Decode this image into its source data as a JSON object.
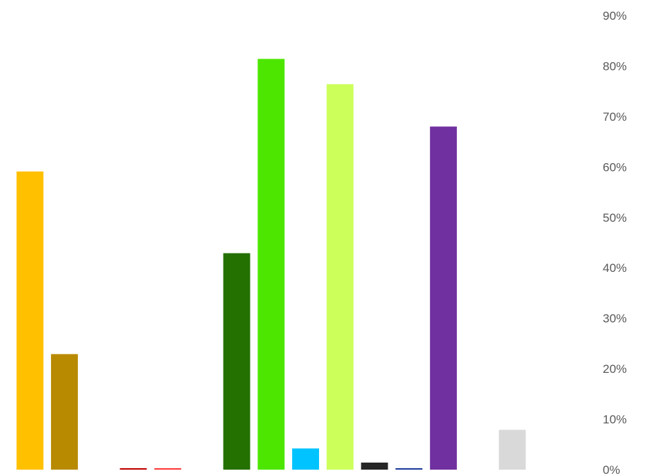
{
  "chart_data": {
    "type": "bar",
    "title": "",
    "xlabel": "",
    "ylabel": "",
    "ylim": [
      0,
      90
    ],
    "y_axis_position": "right",
    "y_ticks": [
      0,
      10,
      20,
      30,
      40,
      50,
      60,
      70,
      80,
      90
    ],
    "y_tick_labels": [
      "0%",
      "10%",
      "20%",
      "30%",
      "40%",
      "50%",
      "60%",
      "70%",
      "80%",
      "90%"
    ],
    "grid": false,
    "legend": "none",
    "categories": [
      "",
      "",
      "",
      "",
      "",
      "",
      "",
      "",
      "",
      "",
      "",
      "",
      "",
      "",
      "",
      ""
    ],
    "values": [
      59.1,
      22.9,
      0,
      0.3,
      0.3,
      0,
      42.9,
      81.4,
      4.2,
      76.4,
      1.4,
      0.3,
      68.0,
      0,
      7.9,
      0
    ],
    "colors": [
      "#FFC000",
      "#B88A00",
      "#FFFFFF",
      "#C00000",
      "#FF3B3B",
      "#FFFFFF",
      "#247000",
      "#4CE600",
      "#00C3FF",
      "#CCFF5A",
      "#262626",
      "#1F3C9C",
      "#7030A0",
      "#FFFFFF",
      "#D9D9D9",
      "#FFFFFF"
    ]
  }
}
